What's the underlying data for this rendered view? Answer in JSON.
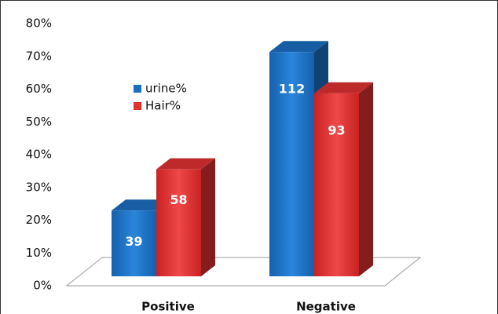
{
  "chart_data": {
    "type": "bar3d",
    "categories": [
      "Positive",
      "Negative"
    ],
    "series": [
      {
        "name": "urine%",
        "color": "#1b6fc2",
        "values": [
          25.8,
          74.2
        ],
        "counts": [
          39,
          112
        ]
      },
      {
        "name": "Hair%",
        "color": "#e03131",
        "values": [
          38.4,
          61.6
        ],
        "counts": [
          58,
          93
        ]
      }
    ],
    "ylim": [
      0,
      80
    ],
    "yticks": [
      {
        "value": 0,
        "label": "0%"
      },
      {
        "value": 10,
        "label": "10%"
      },
      {
        "value": 20,
        "label": "20%"
      },
      {
        "value": 30,
        "label": "30%"
      },
      {
        "value": 40,
        "label": "40%"
      },
      {
        "value": 50,
        "label": "50%"
      },
      {
        "value": 60,
        "label": "60%"
      },
      {
        "value": 70,
        "label": "70%"
      },
      {
        "value": 80,
        "label": "80%"
      }
    ],
    "legend": "upper-left"
  }
}
